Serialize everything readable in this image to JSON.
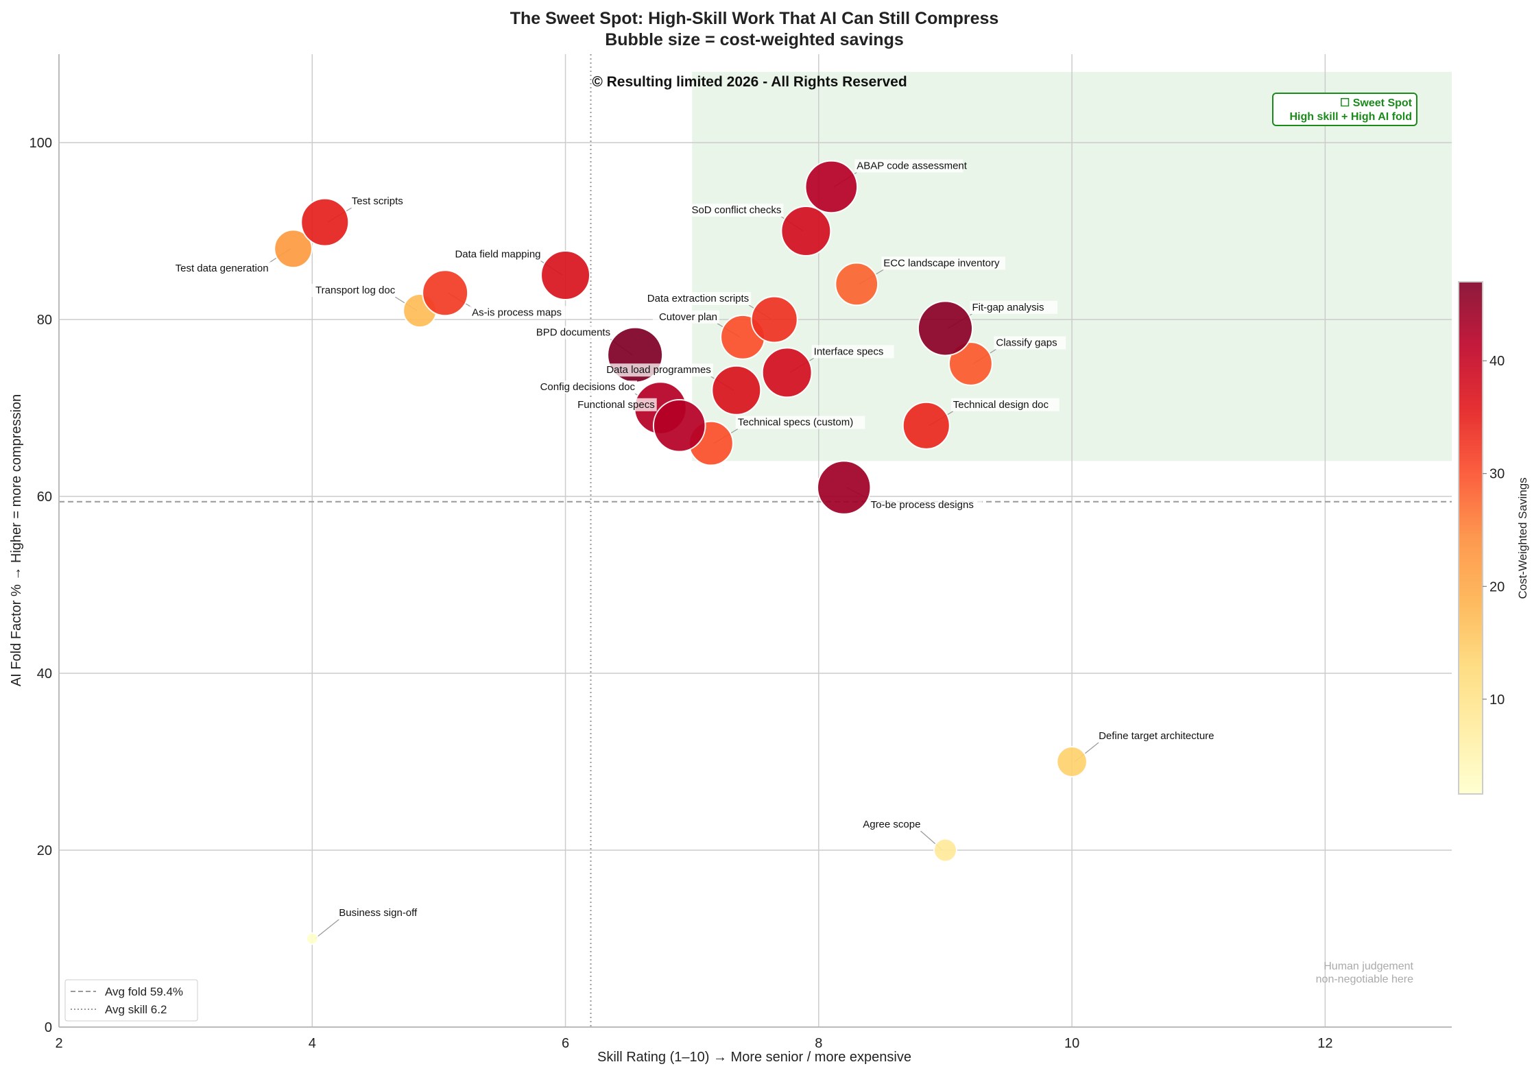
{
  "chart_data": {
    "type": "scatter",
    "title": "The Sweet Spot: High-Skill Work That AI Can Still Compress",
    "subtitle": "Bubble size = cost-weighted savings",
    "xlabel": "Skill Rating (1–10)  →  More senior / more expensive",
    "ylabel": "AI Fold Factor %  →  Higher = more compression",
    "xlim": [
      2,
      13
    ],
    "ylim": [
      0,
      110
    ],
    "xticks": [
      2,
      4,
      6,
      8,
      10,
      12
    ],
    "yticks": [
      0,
      20,
      40,
      60,
      80,
      100
    ],
    "grid": true,
    "watermark": "© Resulting limited 2026 - All Rights Reserved",
    "colorbar": {
      "label": "Cost-Weighted Savings",
      "colormap": "YlOrRd",
      "range": [
        1.6,
        47
      ],
      "ticks": [
        10,
        20,
        30,
        40
      ]
    },
    "sweet_spot": {
      "x_range": [
        7,
        13
      ],
      "y_range": [
        64,
        108
      ],
      "fill": "#e8f4e8",
      "label_line1": "☐ Sweet Spot",
      "label_line2": "High skill + High AI fold",
      "color": "#1a8a1a"
    },
    "note_line1": "Human judgement",
    "note_line2": "non-negotiable here",
    "reference_lines": [
      {
        "name": "Avg fold 59.4%",
        "axis": "y",
        "value": 59.4,
        "style": "dashed"
      },
      {
        "name": "Avg skill 6.2",
        "axis": "x",
        "value": 6.2,
        "style": "dotted"
      }
    ],
    "points": [
      {
        "label": "Test scripts",
        "x": 4.1,
        "y": 91,
        "savings": 35
      },
      {
        "label": "Test data generation",
        "x": 3.85,
        "y": 88,
        "savings": 22
      },
      {
        "label": "Data field mapping",
        "x": 6.0,
        "y": 85,
        "savings": 37
      },
      {
        "label": "Transport log doc",
        "x": 4.85,
        "y": 81,
        "savings": 17
      },
      {
        "label": "As-is process maps",
        "x": 5.05,
        "y": 83,
        "savings": 32
      },
      {
        "label": "BPD documents",
        "x": 6.55,
        "y": 76,
        "savings": 47
      },
      {
        "label": "Config decisions doc",
        "x": 6.75,
        "y": 70,
        "savings": 42
      },
      {
        "label": "Functional specs",
        "x": 6.9,
        "y": 68,
        "savings": 42
      },
      {
        "label": "Technical specs (custom)",
        "x": 7.15,
        "y": 66,
        "savings": 30
      },
      {
        "label": "Data load programmes",
        "x": 7.35,
        "y": 72,
        "savings": 37
      },
      {
        "label": "Cutover plan",
        "x": 7.4,
        "y": 78,
        "savings": 30
      },
      {
        "label": "Data extraction scripts",
        "x": 7.65,
        "y": 80,
        "savings": 33
      },
      {
        "label": "Interface specs",
        "x": 7.75,
        "y": 74,
        "savings": 38
      },
      {
        "label": "SoD conflict checks",
        "x": 7.9,
        "y": 90,
        "savings": 38
      },
      {
        "label": "ABAP code assessment",
        "x": 8.1,
        "y": 95,
        "savings": 42
      },
      {
        "label": "ECC landscape inventory",
        "x": 8.3,
        "y": 84,
        "savings": 28
      },
      {
        "label": "To-be process designs",
        "x": 8.2,
        "y": 61,
        "savings": 44
      },
      {
        "label": "Technical design doc",
        "x": 8.85,
        "y": 68,
        "savings": 34
      },
      {
        "label": "Fit-gap analysis",
        "x": 9.0,
        "y": 79,
        "savings": 46
      },
      {
        "label": "Classify gaps",
        "x": 9.2,
        "y": 75,
        "savings": 29
      },
      {
        "label": "Define target architecture",
        "x": 10.0,
        "y": 30,
        "savings": 14
      },
      {
        "label": "Agree scope",
        "x": 9.0,
        "y": 20,
        "savings": 8
      },
      {
        "label": "Business sign-off",
        "x": 4.0,
        "y": 10,
        "savings": 2
      }
    ]
  }
}
